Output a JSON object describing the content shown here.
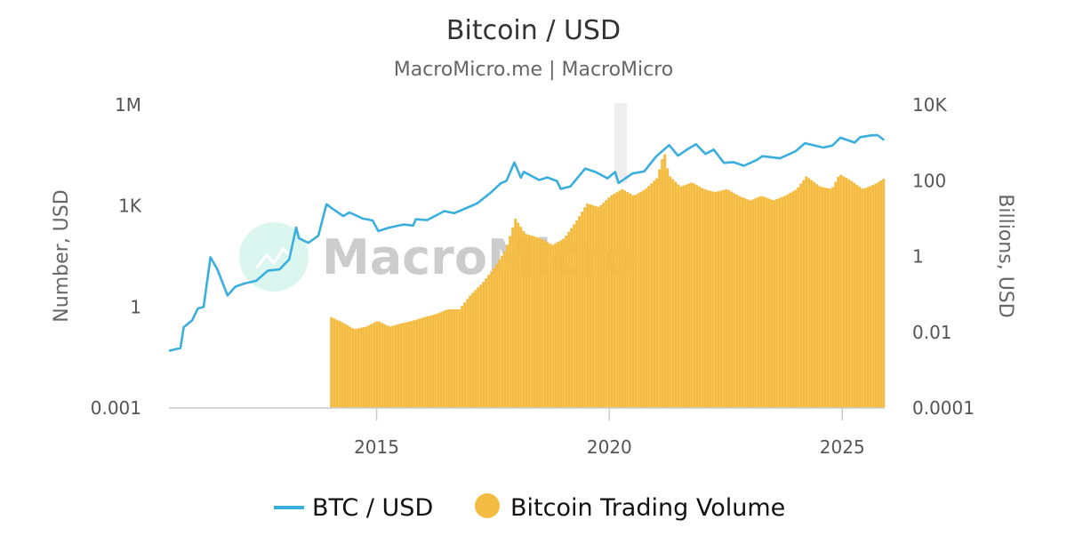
{
  "chart_data": {
    "type": "line+bar",
    "title": "Bitcoin / USD",
    "subtitle": "MacroMicro.me | MacroMicro",
    "watermark": "MacroMicro",
    "x_axis": {
      "scale": "date",
      "range": [
        "2010-07-17",
        "2025-11-30"
      ],
      "ticks": [
        "2015",
        "2020",
        "2025"
      ]
    },
    "y_left": {
      "label": "Number, USD",
      "scale": "log",
      "range": [
        0.001,
        1000000
      ],
      "ticks": [
        "0.001",
        "1",
        "1K",
        "1M"
      ]
    },
    "y_right": {
      "label": "Billions, USD",
      "scale": "log",
      "range": [
        0.0001,
        10000
      ],
      "ticks": [
        "0.0001",
        "0.01",
        "1",
        "100",
        "10K"
      ]
    },
    "legend": {
      "position": "bottom-center",
      "items": [
        {
          "label": "BTC / USD",
          "marker": "line",
          "color": "#3aaedc"
        },
        {
          "label": "Bitcoin Trading Volume",
          "marker": "circle",
          "color": "#f4bb41"
        }
      ]
    },
    "series": [
      {
        "name": "BTC / USD",
        "type": "line",
        "axis": "left",
        "color": "#3aaedc",
        "points": [
          [
            "2010-07-18",
            0.05
          ],
          [
            "2010-10-15",
            0.06
          ],
          [
            "2010-11-10",
            0.25
          ],
          [
            "2011-01-15",
            0.4
          ],
          [
            "2011-03-01",
            0.9
          ],
          [
            "2011-04-15",
            1.0
          ],
          [
            "2011-06-08",
            30
          ],
          [
            "2011-08-01",
            13
          ],
          [
            "2011-10-20",
            2.2
          ],
          [
            "2011-12-20",
            4
          ],
          [
            "2012-03-01",
            5
          ],
          [
            "2012-06-01",
            6
          ],
          [
            "2012-09-01",
            12
          ],
          [
            "2012-12-01",
            13
          ],
          [
            "2013-02-15",
            26
          ],
          [
            "2013-04-10",
            230
          ],
          [
            "2013-05-01",
            110
          ],
          [
            "2013-07-15",
            80
          ],
          [
            "2013-10-01",
            130
          ],
          [
            "2013-12-04",
            1130
          ],
          [
            "2014-01-15",
            850
          ],
          [
            "2014-04-15",
            500
          ],
          [
            "2014-06-01",
            640
          ],
          [
            "2014-09-15",
            420
          ],
          [
            "2014-12-01",
            370
          ],
          [
            "2015-01-14",
            180
          ],
          [
            "2015-04-15",
            230
          ],
          [
            "2015-08-01",
            280
          ],
          [
            "2015-10-15",
            260
          ],
          [
            "2015-11-04",
            400
          ],
          [
            "2016-02-01",
            380
          ],
          [
            "2016-06-15",
            700
          ],
          [
            "2016-09-01",
            610
          ],
          [
            "2016-12-31",
            950
          ],
          [
            "2017-03-01",
            1200
          ],
          [
            "2017-06-15",
            2500
          ],
          [
            "2017-09-01",
            4700
          ],
          [
            "2017-10-15",
            5500
          ],
          [
            "2017-12-17",
            19500
          ],
          [
            "2018-02-06",
            6900
          ],
          [
            "2018-03-01",
            10300
          ],
          [
            "2018-06-29",
            5900
          ],
          [
            "2018-09-01",
            7000
          ],
          [
            "2018-11-15",
            5500
          ],
          [
            "2018-12-15",
            3200
          ],
          [
            "2019-03-01",
            3800
          ],
          [
            "2019-06-26",
            12900
          ],
          [
            "2019-09-15",
            10200
          ],
          [
            "2019-12-17",
            6600
          ],
          [
            "2020-02-15",
            10200
          ],
          [
            "2020-03-13",
            4800
          ],
          [
            "2020-07-01",
            9200
          ],
          [
            "2020-10-01",
            10600
          ],
          [
            "2020-12-31",
            29000
          ],
          [
            "2021-04-14",
            64000
          ],
          [
            "2021-06-22",
            31000
          ],
          [
            "2021-09-01",
            47000
          ],
          [
            "2021-11-10",
            68000
          ],
          [
            "2022-01-24",
            35000
          ],
          [
            "2022-03-30",
            47000
          ],
          [
            "2022-06-18",
            19000
          ],
          [
            "2022-09-01",
            20000
          ],
          [
            "2022-11-21",
            15600
          ],
          [
            "2023-03-01",
            23000
          ],
          [
            "2023-04-15",
            30000
          ],
          [
            "2023-09-01",
            26000
          ],
          [
            "2023-12-31",
            42000
          ],
          [
            "2024-03-14",
            73000
          ],
          [
            "2024-08-05",
            54000
          ],
          [
            "2024-10-15",
            62000
          ],
          [
            "2024-12-17",
            106000
          ],
          [
            "2025-04-08",
            76000
          ],
          [
            "2025-05-22",
            110000
          ],
          [
            "2025-08-14",
            124000
          ],
          [
            "2025-10-06",
            126000
          ],
          [
            "2025-11-25",
            90000
          ]
        ]
      },
      {
        "name": "Bitcoin Trading Volume",
        "type": "column",
        "axis": "right",
        "color": "#f4bb41",
        "points": [
          [
            "2014-01-01",
            0.025
          ],
          [
            "2014-04-01",
            0.018
          ],
          [
            "2014-07-01",
            0.012
          ],
          [
            "2014-10-01",
            0.014
          ],
          [
            "2015-01-01",
            0.02
          ],
          [
            "2015-04-01",
            0.014
          ],
          [
            "2015-07-01",
            0.017
          ],
          [
            "2015-10-01",
            0.02
          ],
          [
            "2016-01-01",
            0.025
          ],
          [
            "2016-04-01",
            0.03
          ],
          [
            "2016-07-01",
            0.04
          ],
          [
            "2016-10-01",
            0.04
          ],
          [
            "2017-01-01",
            0.1
          ],
          [
            "2017-04-01",
            0.2
          ],
          [
            "2017-07-01",
            0.5
          ],
          [
            "2017-10-01",
            1.5
          ],
          [
            "2017-12-15",
            10
          ],
          [
            "2018-03-01",
            4
          ],
          [
            "2018-07-01",
            3
          ],
          [
            "2018-10-01",
            2
          ],
          [
            "2019-01-01",
            3
          ],
          [
            "2019-04-01",
            8
          ],
          [
            "2019-07-01",
            25
          ],
          [
            "2019-10-01",
            20
          ],
          [
            "2020-01-01",
            40
          ],
          [
            "2020-04-01",
            60
          ],
          [
            "2020-07-01",
            40
          ],
          [
            "2020-10-01",
            60
          ],
          [
            "2021-01-01",
            120
          ],
          [
            "2021-02-24",
            600
          ],
          [
            "2021-04-01",
            140
          ],
          [
            "2021-07-01",
            70
          ],
          [
            "2021-10-01",
            90
          ],
          [
            "2022-01-01",
            60
          ],
          [
            "2022-04-01",
            50
          ],
          [
            "2022-07-01",
            60
          ],
          [
            "2022-10-01",
            40
          ],
          [
            "2023-01-01",
            30
          ],
          [
            "2023-04-01",
            40
          ],
          [
            "2023-07-01",
            30
          ],
          [
            "2023-10-01",
            40
          ],
          [
            "2024-01-01",
            60
          ],
          [
            "2024-03-15",
            130
          ],
          [
            "2024-07-01",
            70
          ],
          [
            "2024-10-01",
            60
          ],
          [
            "2024-12-01",
            150
          ],
          [
            "2025-03-01",
            100
          ],
          [
            "2025-06-01",
            60
          ],
          [
            "2025-09-01",
            80
          ],
          [
            "2025-11-25",
            120
          ]
        ]
      }
    ]
  }
}
